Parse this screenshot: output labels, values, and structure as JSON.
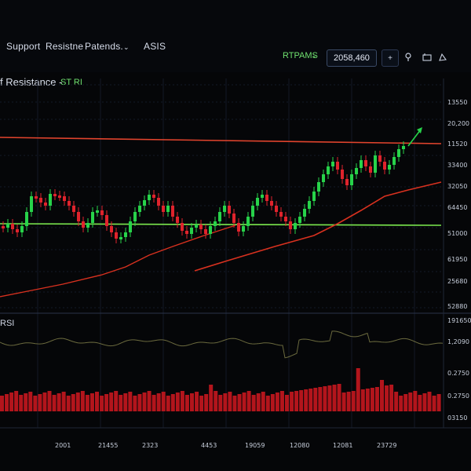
{
  "nav": {
    "support": "Support",
    "resistance": "Resistne",
    "patterns": "Patends.",
    "patterns_chevron": "⌄",
    "asis": "ASIS"
  },
  "toolbar": {
    "rtpams": "RTPAMS",
    "rtpams_chevron": "⌄",
    "price": "2058,460",
    "add_symbol": "+",
    "pin_icon": "pin-icon",
    "screenshot_icon": "camera-icon",
    "shape_icon": "shape-icon"
  },
  "panel": {
    "title": "f Resistance",
    "title_dash": "-",
    "indicator": "ST RI",
    "rsi_label": "RSI"
  },
  "colors": {
    "bull": "#27d34a",
    "bear": "#e0232c",
    "resistance": "#e2442d",
    "support": "#7be84e",
    "ma": "#d8311f",
    "grid": "#1a2232"
  },
  "chart_data": {
    "type": "candlestick",
    "price_axis_labels": [
      "13550",
      "20,200",
      "11520",
      "33400",
      "32050",
      "64450",
      "51000",
      "61950",
      "25680",
      "52880"
    ],
    "oscillator_axis_labels": [
      "191650",
      "1,2090"
    ],
    "volume_axis_labels": [
      "0.2750",
      "0.2750",
      "03150"
    ],
    "x_labels": [
      "2001",
      "21455",
      "2323",
      "4453",
      "19059",
      "12080",
      "12081",
      "23729"
    ],
    "resistance_line": "red horizontal line near top",
    "support_line": "green horizontal line through middle"
  }
}
